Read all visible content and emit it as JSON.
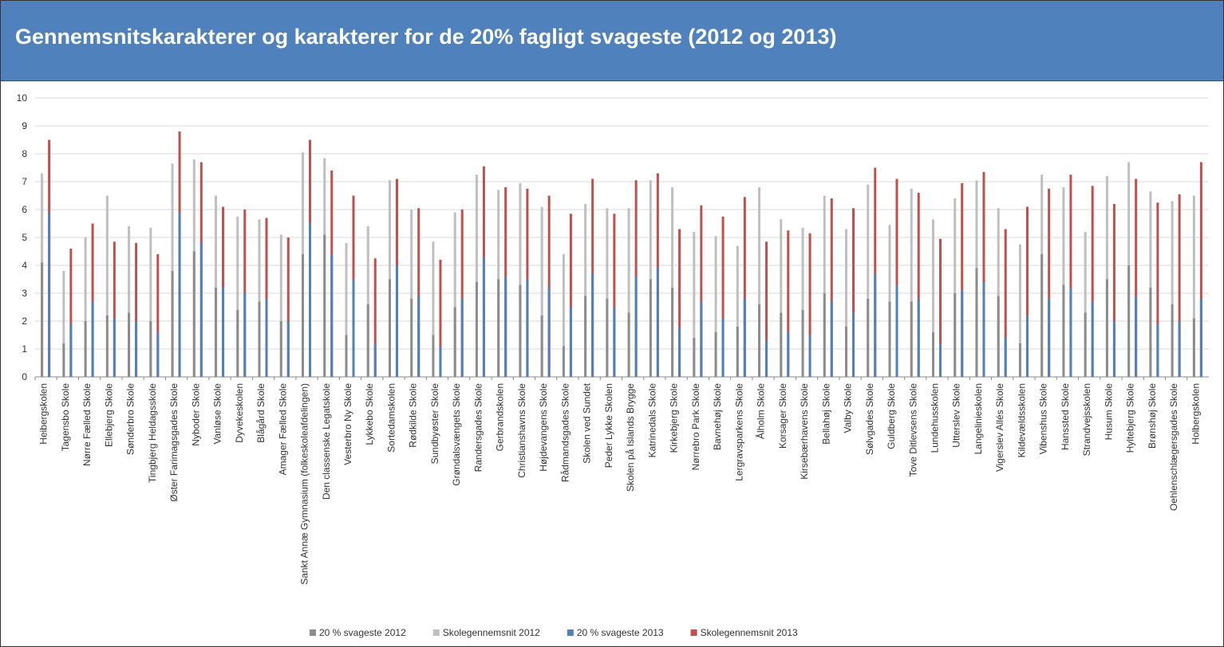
{
  "chart_data": {
    "type": "bar",
    "title": "Gennemsnitskarakterer og karakterer for de 20% fagligt svageste (2012 og 2013)",
    "categories": [
      "Heibergskolen",
      "Tagensbo Skole",
      "Nørre Fælled Skole",
      "Ellebjerg Skole",
      "Sønderbro Skole",
      "Tingbjerg Heldagsskole",
      "Øster Farimagsgades Skole",
      "Nyboder Skole",
      "Vanløse Skole",
      "Dyvekeskolen",
      "Blågård Skole",
      "Amager Fælled Skole",
      "Sankt Annæ Gymnasium (folkeskoleafdelingen)",
      "Den classenske Legatskole",
      "Vesterbro Ny Skole",
      "Lykkebo Skole",
      "Sortedamskolen",
      "Rødkilde Skole",
      "Sundbyøster Skole",
      "Grøndalsvængets Skole",
      "Randersgades Skole",
      "Gerbrandskolen",
      "Christianshavns Skole",
      "Højdevangens Skole",
      "Rådmandsgades Skole",
      "Skolen ved Sundet",
      "Peder Lykke Skolen",
      "Skolen på Islands Brygge",
      "Katrinedals Skole",
      "Kirkebjerg Skole",
      "Nørrebro Park Skole",
      "Bavnehøj Skole",
      "Lergravsparkens Skole",
      "Ålholm Skole",
      "Korsager Skole",
      "Kirsebærhavens Skole",
      "Bellahøj Skole",
      "Valby Skole",
      "Sølvgades Skole",
      "Guldberg Skole",
      "Tove Ditlevsens Skole",
      "Lundehusskolen",
      "Utterslev Skole",
      "Langelinieskolen",
      "Vigerslev Allés Skole",
      "Kildevældsskolen",
      "Vibenshus Skole",
      "Hanssted Skole",
      "Strandvejsskolen",
      "Husum Skole",
      "Hyltebjerg Skole",
      "Brønshøj Skole",
      "Oehlenschlægersgades Skole",
      "Holbergskolen"
    ],
    "series": [
      {
        "name": "20 % svageste 2012",
        "color": "#8c8c8c",
        "values": [
          4.1,
          1.2,
          2.0,
          2.2,
          2.3,
          2.0,
          3.8,
          4.5,
          3.2,
          2.4,
          2.7,
          2.0,
          4.4,
          5.1,
          1.5,
          2.6,
          3.5,
          2.8,
          1.5,
          2.5,
          3.4,
          3.5,
          3.3,
          2.2,
          1.1,
          2.9,
          2.8,
          2.3,
          3.5,
          3.2,
          1.4,
          1.6,
          1.8,
          2.6,
          2.3,
          2.4,
          3.0,
          1.8,
          2.8,
          2.7,
          2.7,
          1.6,
          3.0,
          3.9,
          2.9,
          1.2,
          4.4,
          3.3,
          2.3,
          3.5,
          4.0,
          3.2,
          2.6,
          2.1
        ]
      },
      {
        "name": "Skolegennemsnit 2012",
        "color": "#bfbfbf",
        "values": [
          7.3,
          3.8,
          5.0,
          6.5,
          5.4,
          5.35,
          7.65,
          7.8,
          6.5,
          5.75,
          5.65,
          5.1,
          8.05,
          7.85,
          4.8,
          5.4,
          7.05,
          6.0,
          4.85,
          5.9,
          7.25,
          6.7,
          6.95,
          6.1,
          4.4,
          6.2,
          6.05,
          6.05,
          7.05,
          6.8,
          5.2,
          5.05,
          4.7,
          6.8,
          5.65,
          5.35,
          6.5,
          5.3,
          6.9,
          5.45,
          6.75,
          5.65,
          6.4,
          7.05,
          6.05,
          4.75,
          7.25,
          6.8,
          5.2,
          7.2,
          7.7,
          6.65,
          6.3,
          6.5
        ]
      },
      {
        "name": "20 % svageste 2013",
        "color": "#4f81bd",
        "values": [
          5.9,
          1.9,
          2.7,
          2.1,
          2.0,
          1.6,
          5.9,
          4.8,
          3.2,
          3.0,
          2.8,
          2.0,
          5.5,
          4.4,
          3.5,
          1.2,
          4.0,
          2.9,
          1.1,
          2.8,
          4.3,
          3.6,
          3.5,
          3.2,
          2.5,
          3.7,
          2.5,
          3.6,
          3.9,
          1.8,
          2.7,
          2.1,
          2.8,
          1.3,
          1.6,
          1.5,
          2.7,
          2.3,
          3.7,
          3.3,
          2.8,
          1.2,
          3.1,
          3.4,
          1.4,
          2.2,
          2.8,
          3.2,
          2.7,
          2.0,
          2.9,
          1.9,
          2.0,
          2.8
        ]
      },
      {
        "name": "Skolegennemsnit 2013",
        "color": "#c0504d",
        "values": [
          8.5,
          4.6,
          5.5,
          4.85,
          4.8,
          4.4,
          8.8,
          7.7,
          6.1,
          6.0,
          5.7,
          5.0,
          8.5,
          7.4,
          6.5,
          4.25,
          7.1,
          6.05,
          4.2,
          6.0,
          7.55,
          6.8,
          6.75,
          6.5,
          5.85,
          7.1,
          5.85,
          7.05,
          7.3,
          5.3,
          6.15,
          5.75,
          6.45,
          4.85,
          5.25,
          5.15,
          6.4,
          6.05,
          7.5,
          7.1,
          6.6,
          4.95,
          6.95,
          7.35,
          5.3,
          6.1,
          6.75,
          7.25,
          6.85,
          6.2,
          7.1,
          6.25,
          6.55,
          7.7
        ]
      }
    ],
    "ylim": [
      0,
      10
    ],
    "yticks": [
      0,
      1,
      2,
      3,
      4,
      5,
      6,
      7,
      8,
      9,
      10
    ],
    "grid": true,
    "legend": "bottom"
  }
}
